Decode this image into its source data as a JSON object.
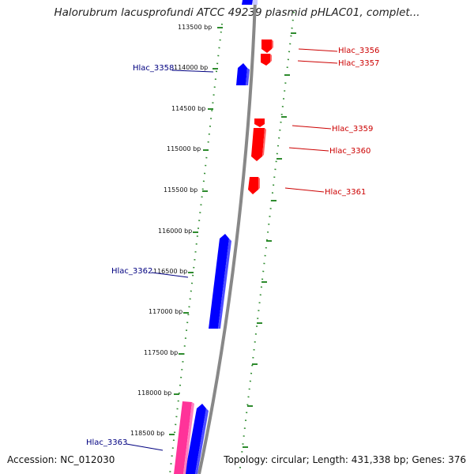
{
  "title": "Halorubrum lacusprofundi ATCC 49239 plasmid pHLAC01, complet...",
  "footer": {
    "accession": "Accession: NC_012030",
    "summary": "Topology: circular; Length: 431,338 bp; Genes: 376"
  },
  "colors": {
    "forward": "#0000ff",
    "reverse": "#ff0000",
    "rna": "#ff3399",
    "backbone": "#888888",
    "tick": "#2e8b2e",
    "forward_label": "#000080",
    "reverse_label": "#cc0000"
  },
  "ticks": [
    "113500 bp",
    "114000 bp",
    "114500 bp",
    "115000 bp",
    "115500 bp",
    "116000 bp",
    "116500 bp",
    "117000 bp",
    "117500 bp",
    "118000 bp",
    "118500 bp"
  ],
  "genes": [
    {
      "label": "Hlac_3356",
      "strand": "reverse"
    },
    {
      "label": "Hlac_3357",
      "strand": "reverse"
    },
    {
      "label": "Hlac_3358",
      "strand": "forward"
    },
    {
      "label": "Hlac_3359",
      "strand": "reverse"
    },
    {
      "label": "Hlac_3360",
      "strand": "reverse"
    },
    {
      "label": "Hlac_3361",
      "strand": "reverse"
    },
    {
      "label": "Hlac_3362",
      "strand": "forward"
    },
    {
      "label": "Hlac_3363",
      "strand": "forward"
    }
  ]
}
